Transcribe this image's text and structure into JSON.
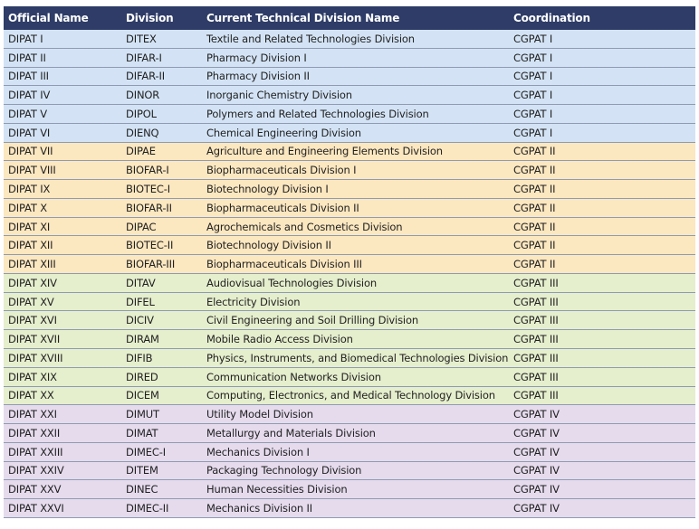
{
  "table": {
    "headers": [
      "Official Name",
      "Division",
      "Current Technical Division Name",
      "Coordination"
    ],
    "group_colors": {
      "CGPAT I": "#d3e3f5",
      "CGPAT II": "#fbe7c0",
      "CGPAT III": "#e5eecd",
      "CGPAT IV": "#e5dbed"
    },
    "header_color": "#2e3c67",
    "rows": [
      [
        "DIPAT I",
        "DITEX",
        "Textile and Related Technologies Division",
        "CGPAT I"
      ],
      [
        "DIPAT II",
        "DIFAR-I",
        "Pharmacy Division I",
        "CGPAT I"
      ],
      [
        "DIPAT III",
        "DIFAR-II",
        "Pharmacy Division II",
        "CGPAT I"
      ],
      [
        "DIPAT IV",
        "DINOR",
        "Inorganic Chemistry Division",
        "CGPAT I"
      ],
      [
        "DIPAT V",
        "DIPOL",
        "Polymers and Related Technologies Division",
        "CGPAT I"
      ],
      [
        "DIPAT VI",
        "DIENQ",
        "Chemical Engineering Division",
        "CGPAT I"
      ],
      [
        "DIPAT VII",
        "DIPAE",
        "Agriculture and Engineering Elements Division",
        "CGPAT II"
      ],
      [
        "DIPAT VIII",
        "BIOFAR-I",
        "Biopharmaceuticals Division I",
        "CGPAT II"
      ],
      [
        "DIPAT IX",
        "BIOTEC-I",
        "Biotechnology Division I",
        "CGPAT II"
      ],
      [
        "DIPAT X",
        "BIOFAR-II",
        "Biopharmaceuticals Division II",
        "CGPAT II"
      ],
      [
        "DIPAT XI",
        "DIPAC",
        "Agrochemicals and Cosmetics Division",
        "CGPAT II"
      ],
      [
        "DIPAT XII",
        "BIOTEC-II",
        "Biotechnology Division II",
        "CGPAT II"
      ],
      [
        "DIPAT XIII",
        "BIOFAR-III",
        "Biopharmaceuticals Division III",
        "CGPAT II"
      ],
      [
        "DIPAT XIV",
        "DITAV",
        "Audiovisual Technologies Division",
        "CGPAT III"
      ],
      [
        "DIPAT XV",
        "DIFEL",
        "Electricity Division",
        "CGPAT III"
      ],
      [
        "DIPAT XVI",
        "DICIV",
        "Civil Engineering and Soil Drilling Division",
        "CGPAT III"
      ],
      [
        "DIPAT XVII",
        "DIRAM",
        "Mobile Radio Access Division",
        "CGPAT III"
      ],
      [
        "DIPAT XVIII",
        "DIFIB",
        "Physics, Instruments, and Biomedical Technologies Division",
        "CGPAT III"
      ],
      [
        "DIPAT XIX",
        "DIRED",
        "Communication Networks Division",
        "CGPAT III"
      ],
      [
        "DIPAT XX",
        "DICEM",
        "Computing, Electronics, and Medical Technology Division",
        "CGPAT III"
      ],
      [
        "DIPAT XXI",
        "DIMUT",
        "Utility Model Division",
        "CGPAT IV"
      ],
      [
        "DIPAT XXII",
        "DIMAT",
        "Metallurgy and Materials Division",
        "CGPAT IV"
      ],
      [
        "DIPAT XXIII",
        "DIMEC-I",
        "Mechanics Division I",
        "CGPAT IV"
      ],
      [
        "DIPAT XXIV",
        "DITEM",
        "Packaging Technology Division",
        "CGPAT IV"
      ],
      [
        "DIPAT XXV",
        "DINEC",
        "Human Necessities Division",
        "CGPAT IV"
      ],
      [
        "DIPAT XXVI",
        "DIMEC-II",
        "Mechanics Division II",
        "CGPAT IV"
      ]
    ]
  }
}
